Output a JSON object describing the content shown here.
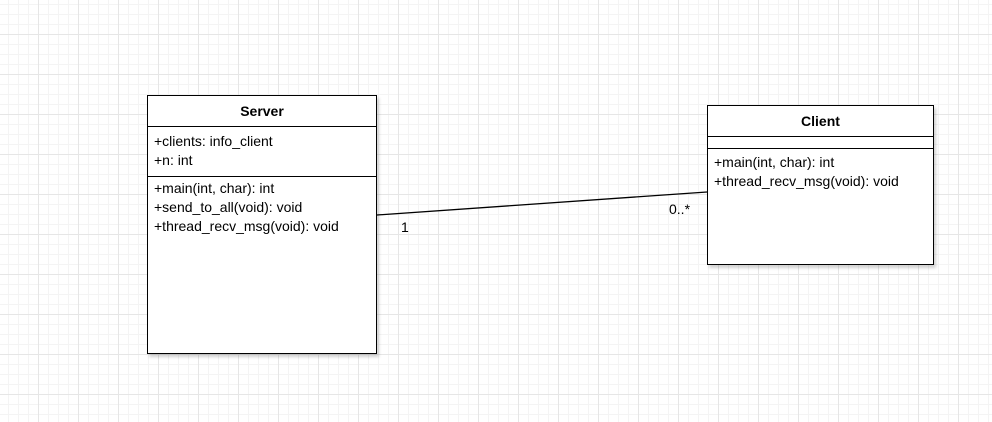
{
  "classes": {
    "server": {
      "name": "Server",
      "attributes": [
        "+clients: info_client",
        "+n: int"
      ],
      "operations": [
        "+main(int, char): int",
        "+send_to_all(void): void",
        "+thread_recv_msg(void): void"
      ]
    },
    "client": {
      "name": "Client",
      "attributes": [],
      "operations": [
        "+main(int, char): int",
        "+thread_recv_msg(void): void"
      ]
    }
  },
  "association": {
    "source_multiplicity": "1",
    "target_multiplicity": "0..*"
  }
}
